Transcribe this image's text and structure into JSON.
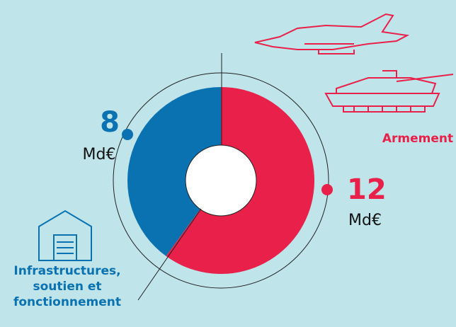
{
  "chart_data": {
    "type": "pie",
    "donut": true,
    "categories": [
      "Armement",
      "Infrastructures,\nsoutien et\nfonctionnement"
    ],
    "values": [
      12,
      8
    ],
    "colors": [
      "#e8204a",
      "#0a72b0"
    ],
    "unit": "Md€"
  }
}
